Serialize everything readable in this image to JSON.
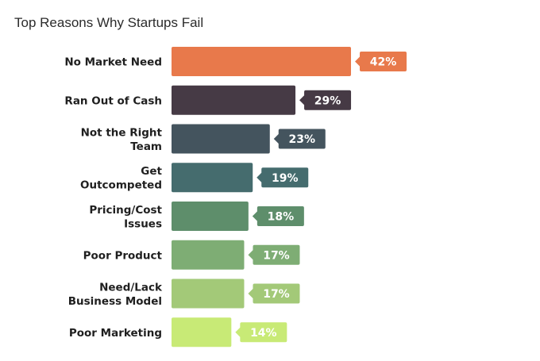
{
  "chart_data": {
    "type": "bar",
    "orientation": "horizontal",
    "title": "Top Reasons Why Startups Fail",
    "categories": [
      "No Market Need",
      "Ran Out of Cash",
      "Not the Right Team",
      "Get Outcompeted",
      "Pricing/Cost Issues",
      "Poor Product",
      "Need/Lack Business Model",
      "Poor Marketing"
    ],
    "values": [
      42,
      29,
      23,
      19,
      18,
      17,
      17,
      14
    ],
    "value_labels": [
      "42%",
      "29%",
      "23%",
      "19%",
      "18%",
      "17%",
      "17%",
      "14%"
    ],
    "category_lines": [
      [
        "No Market Need"
      ],
      [
        "Ran Out of Cash"
      ],
      [
        "Not the Right",
        "Team"
      ],
      [
        "Get",
        "Outcompeted"
      ],
      [
        "Pricing/Cost",
        "Issues"
      ],
      [
        "Poor Product"
      ],
      [
        "Need/Lack",
        "Business Model"
      ],
      [
        "Poor Marketing"
      ]
    ],
    "colors": [
      "#e8794b",
      "#463a45",
      "#44545e",
      "#456c6e",
      "#5e8e6b",
      "#7ead74",
      "#a3c978",
      "#c8ea76"
    ],
    "xlabel": "",
    "ylabel": "",
    "grid": false,
    "legend": "none",
    "xlim": [
      0,
      42
    ]
  }
}
